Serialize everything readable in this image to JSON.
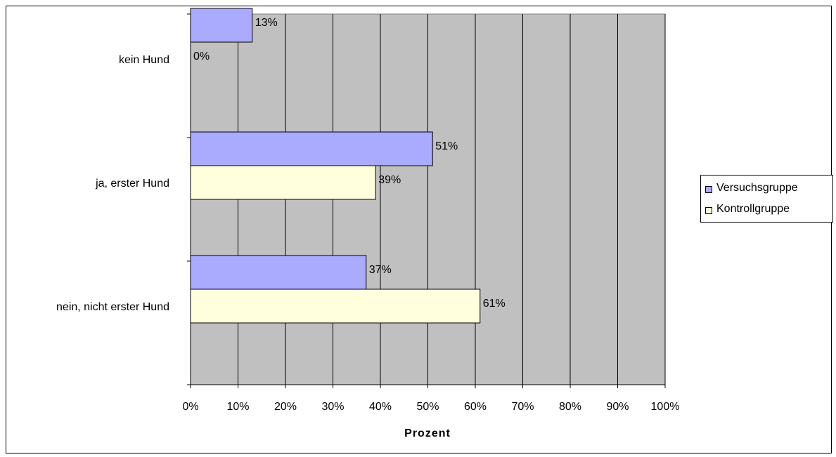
{
  "chart_data": {
    "type": "bar",
    "orientation": "horizontal",
    "categories": [
      "kein Hund",
      "ja, erster Hund",
      "nein, nicht erster Hund"
    ],
    "series": [
      {
        "name": "Versuchsgruppe",
        "color": "#aaaaff",
        "values": [
          13,
          51,
          37
        ],
        "value_labels": [
          "13%",
          "51%",
          "37%"
        ]
      },
      {
        "name": "Kontrollgruppe",
        "color": "#ffffdd",
        "values": [
          0,
          39,
          61
        ],
        "value_labels": [
          "0%",
          "39%",
          "61%"
        ]
      }
    ],
    "xlabel": "Prozent",
    "ylabel": "",
    "xlim": [
      0,
      100
    ],
    "x_ticks": [
      "0%",
      "10%",
      "20%",
      "30%",
      "40%",
      "50%",
      "60%",
      "70%",
      "80%",
      "90%",
      "100%"
    ],
    "grid": "vertical",
    "plot_background": "#c0c0c0",
    "legend_position": "right"
  }
}
